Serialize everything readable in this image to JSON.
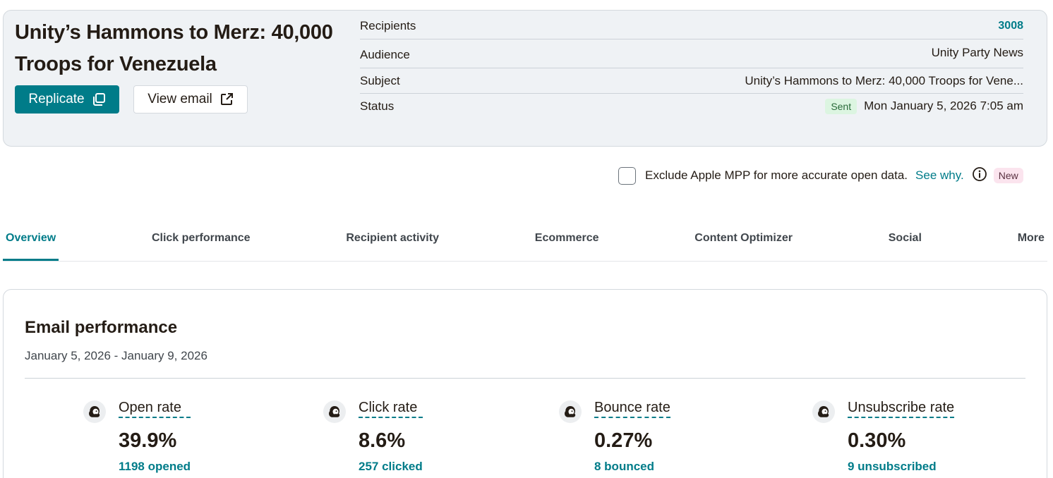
{
  "campaign": {
    "title": "Unity’s Hammons to Merz: 40,000 Troops for Venezuela",
    "replicate_label": "Replicate",
    "view_email_label": "View email"
  },
  "meta": {
    "recipients_label": "Recipients",
    "recipients_value": "3008",
    "audience_label": "Audience",
    "audience_value": "Unity Party News",
    "subject_label": "Subject",
    "subject_value": "Unity’s Hammons to Merz: 40,000 Troops for Vene...",
    "status_label": "Status",
    "status_badge": "Sent",
    "status_value": "Mon January 5, 2026 7:05 am"
  },
  "mpp": {
    "text": "Exclude Apple MPP for more accurate open data.",
    "link": "See why.",
    "badge": "New"
  },
  "tabs": [
    {
      "label": "Overview"
    },
    {
      "label": "Click performance"
    },
    {
      "label": "Recipient activity"
    },
    {
      "label": "Ecommerce"
    },
    {
      "label": "Content Optimizer"
    },
    {
      "label": "Social"
    },
    {
      "label": "More"
    }
  ],
  "performance": {
    "title": "Email performance",
    "range": "January 5, 2026 - January 9, 2026",
    "metrics": [
      {
        "label": "Open rate",
        "value": "39.9%",
        "count": "1198 opened"
      },
      {
        "label": "Click rate",
        "value": "8.6%",
        "count": "257 clicked"
      },
      {
        "label": "Bounce rate",
        "value": "0.27%",
        "count": "8 bounced"
      },
      {
        "label": "Unsubscribe rate",
        "value": "0.30%",
        "count": "9 unsubscribed"
      }
    ]
  },
  "colors": {
    "accent": "#007c89",
    "sent_badge_bg": "#dcf5e1",
    "new_badge_bg": "#fbe4ee"
  },
  "icons": {
    "replicate": "copy-icon",
    "view_email": "external-link-icon",
    "info": "info-icon",
    "metric": "mailchimp-freddie-icon"
  }
}
